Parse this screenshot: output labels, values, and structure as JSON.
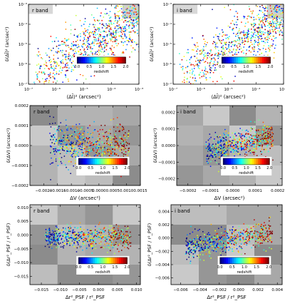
{
  "chart_data": [
    {
      "type": "scatter",
      "panel_label": "r band",
      "xlabel": "⟨ΔĪ⟩² (arcsec²)",
      "ylabel": "δ(ΔĪ)² (arcsec²)",
      "xscale": "log",
      "yscale": "log",
      "xlim": [
        1e-07,
        0.001
      ],
      "ylim": [
        1e-07,
        0.001
      ],
      "xticks": [
        1e-07,
        1e-06,
        1e-05,
        0.0001,
        0.001
      ],
      "xtick_labels": [
        "10⁻⁷",
        "10⁻⁶",
        "10⁻⁵",
        "10⁻⁴",
        "10⁻³"
      ],
      "yticks": [
        1e-07,
        1e-06,
        1e-05,
        0.0001,
        0.001
      ],
      "ytick_labels": [
        "10⁻⁷",
        "10⁻⁶",
        "10⁻⁵",
        "10⁻⁴",
        "10⁻³"
      ],
      "colorbar": {
        "label": "redshift",
        "ticks": [
          "0.0",
          "0.5",
          "1.0",
          "1.5",
          "2.0"
        ]
      },
      "clouds": [
        {
          "n": 900,
          "logx": [
            -6.8,
            -3.0
          ],
          "logy_slope": 0.8,
          "logy_offset": -1.2,
          "logy_spread": 1.6,
          "z": [
            0,
            2
          ]
        }
      ]
    },
    {
      "type": "scatter",
      "panel_label": "i band",
      "xlabel": "⟨ΔĪ⟩² (arcsec²)",
      "ylabel": "δ(ΔĪ)² (arcsec²)",
      "xscale": "log",
      "yscale": "log",
      "xlim": [
        1e-07,
        0.001
      ],
      "ylim": [
        1e-07,
        0.001
      ],
      "xticks": [
        1e-07,
        1e-06,
        1e-05,
        0.0001,
        0.001
      ],
      "xtick_labels": [
        "10⁻⁷",
        "10⁻⁶",
        "10⁻⁵",
        "10⁻⁴",
        "10⁻³"
      ],
      "yticks": [
        1e-07,
        1e-06,
        1e-05,
        0.0001,
        0.001
      ],
      "ytick_labels": [
        "10⁻⁷",
        "10⁻⁶",
        "10⁻⁵",
        "10⁻⁴",
        "10⁻³"
      ],
      "colorbar": {
        "label": "redshift",
        "ticks": [
          "0.0",
          "0.5",
          "1.0",
          "1.5",
          "2.0"
        ]
      },
      "clouds": [
        {
          "n": 900,
          "logx": [
            -6.8,
            -3.0
          ],
          "logy_slope": 0.8,
          "logy_offset": -1.2,
          "logy_spread": 1.6,
          "z": [
            0,
            2
          ]
        }
      ]
    },
    {
      "type": "scatter",
      "panel_label": "r band",
      "xlabel": "ΔV (arcsec²)",
      "ylabel": "δ(ΔV) (arcsec²)",
      "xlim": [
        -0.0025,
        0.0015
      ],
      "ylim": [
        -0.0002,
        0.0002
      ],
      "xticks": [
        -0.002,
        -0.0015,
        -0.001,
        -0.0005,
        0,
        0.0005,
        0.001,
        0.0015
      ],
      "xtick_labels": [
        "−0.0020",
        "−0.0015",
        "−0.0010",
        "−0.0005",
        "0.0000",
        "0.0005",
        "0.0010",
        "0.0015"
      ],
      "yticks": [
        -0.0002,
        -0.0001,
        0,
        0.0001,
        0.0002
      ],
      "ytick_labels": [
        "−0.0002",
        "−0.0001",
        "0.0000",
        "0.0001",
        "0.0002"
      ],
      "colorbar": {
        "label": "redshift",
        "ticks": [
          "0.0",
          "0.5",
          "1.0",
          "1.5",
          "2.0"
        ]
      },
      "clouds": [
        {
          "n": 650,
          "x": [
            -0.0018,
            0.0011
          ],
          "y_center": 0.0,
          "y_slope": 0.0,
          "y_spread": 5e-05,
          "z": [
            0,
            2
          ]
        }
      ]
    },
    {
      "type": "scatter",
      "panel_label": "i band",
      "xlabel": "ΔV (arcsec²)",
      "ylabel": "δ(ΔV) (arcsec²)",
      "xlim": [
        -0.00025,
        0.00022
      ],
      "ylim": [
        -0.00024,
        0.00024
      ],
      "xticks": [
        -0.0002,
        -0.0001,
        0,
        0.0001,
        0.0002
      ],
      "xtick_labels": [
        "−0.0002",
        "−0.0001",
        "0.0000",
        "0.0001",
        "0.0002"
      ],
      "yticks": [
        -0.0002,
        -0.0001,
        0,
        0.0001,
        0.0002
      ],
      "ytick_labels": [
        "−0.0002",
        "−0.0001",
        "0.0000",
        "0.0001",
        "0.0002"
      ],
      "colorbar": {
        "label": "redshift",
        "ticks": [
          "0.0",
          "0.5",
          "1.0",
          "1.5",
          "2.0"
        ]
      },
      "clouds": [
        {
          "n": 650,
          "x": [
            -0.00012,
            0.00018
          ],
          "y_center": 0.0,
          "y_slope": 0.3,
          "y_spread": 4e-05,
          "z": [
            0,
            2
          ]
        }
      ]
    },
    {
      "type": "scatter",
      "panel_label": "r band",
      "xlabel": "Δr²_PSF / r²_PSF",
      "ylabel": "δ(Δr²_PSF / r²_PSF)",
      "xlim": [
        -0.018,
        0.011
      ],
      "ylim": [
        -0.018,
        0.011
      ],
      "xticks": [
        -0.015,
        -0.01,
        -0.005,
        0,
        0.005,
        0.01
      ],
      "xtick_labels": [
        "−0.015",
        "−0.010",
        "−0.005",
        "0.000",
        "0.005",
        "0.010"
      ],
      "yticks": [
        -0.015,
        -0.01,
        -0.005,
        0,
        0.005,
        0.01
      ],
      "ytick_labels": [
        "−0.015",
        "−0.010",
        "−0.005",
        "0.000",
        "0.005",
        "0.010"
      ],
      "colorbar": {
        "label": "redshift",
        "ticks": [
          "0.0",
          "0.5",
          "1.0",
          "1.5",
          "2.0"
        ]
      },
      "clouds": [
        {
          "n": 650,
          "x": [
            -0.014,
            0.0085
          ],
          "y_center": -0.001,
          "y_slope": 0.0,
          "y_spread": 0.002,
          "z": [
            0,
            2
          ]
        }
      ]
    },
    {
      "type": "scatter",
      "panel_label": "i band",
      "xlabel": "Δr²_PSF / r²_PSF",
      "ylabel": "δ(Δr²_PSF / r²_PSF)",
      "xlim": [
        -0.007,
        0.0045
      ],
      "ylim": [
        -0.007,
        0.005
      ],
      "xticks": [
        -0.006,
        -0.004,
        -0.002,
        0,
        0.002,
        0.004
      ],
      "xtick_labels": [
        "−0.006",
        "−0.004",
        "−0.002",
        "0.000",
        "0.002",
        "0.004"
      ],
      "yticks": [
        -0.006,
        -0.004,
        -0.002,
        0,
        0.002,
        0.004
      ],
      "ytick_labels": [
        "−0.006",
        "−0.004",
        "−0.002",
        "0.000",
        "0.002",
        "0.004"
      ],
      "colorbar": {
        "label": "redshift",
        "ticks": [
          "0.0",
          "0.5",
          "1.0",
          "1.5",
          "2.0"
        ]
      },
      "clouds": [
        {
          "n": 650,
          "x": [
            -0.0055,
            0.0035
          ],
          "y_center": 0.0,
          "y_slope": 0.25,
          "y_spread": 0.0009,
          "z": [
            0,
            2
          ]
        }
      ]
    }
  ]
}
